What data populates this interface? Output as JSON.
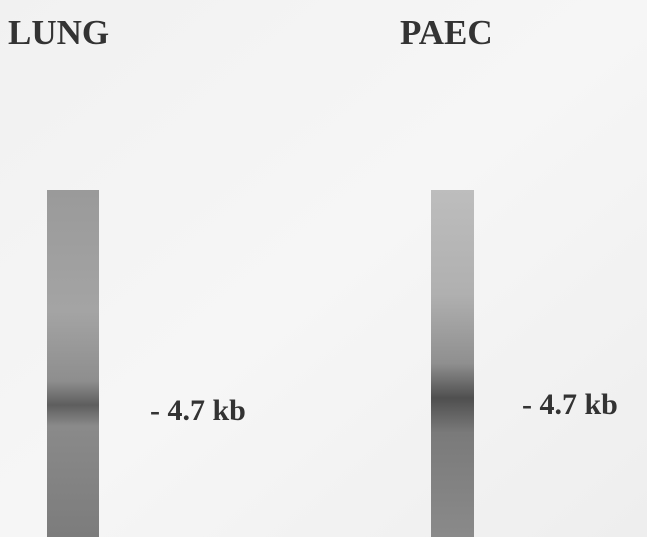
{
  "panels": [
    {
      "title": "LUNG",
      "band_label": "- 4.7 kb"
    },
    {
      "title": "PAEC",
      "band_label": "- 4.7 kb"
    }
  ]
}
